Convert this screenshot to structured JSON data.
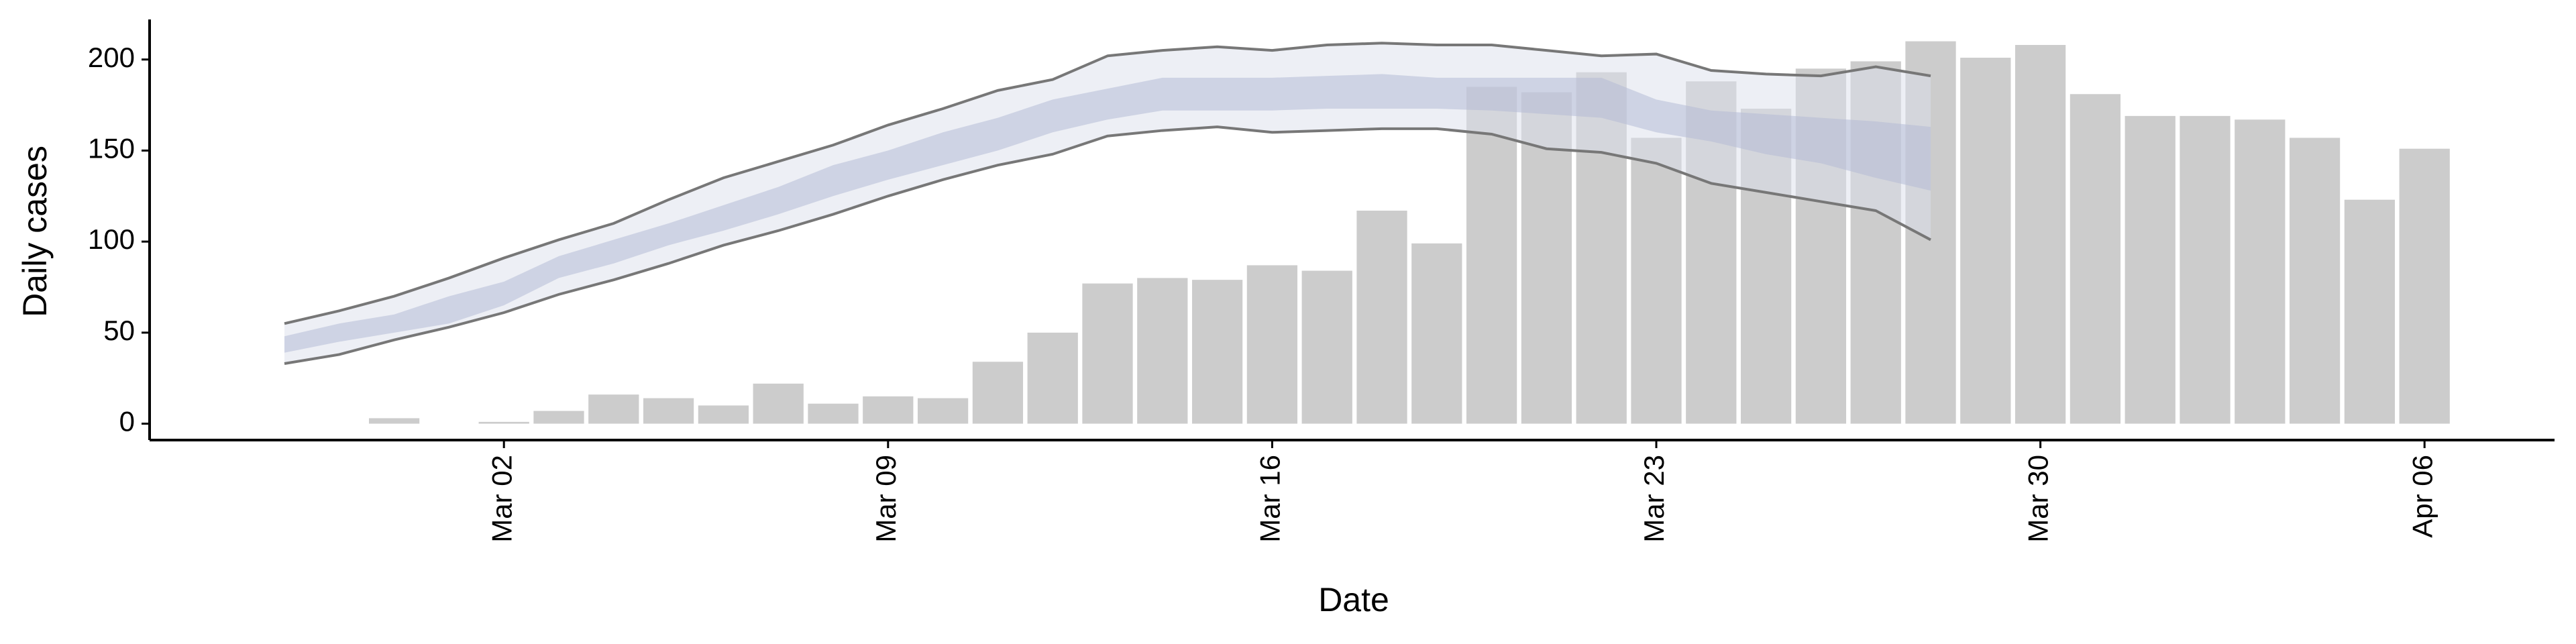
{
  "chart_data": {
    "type": "bar",
    "x_label": "Date",
    "y_label": "Daily cases",
    "categories": [
      null,
      null,
      null,
      null,
      "Mar 02",
      null,
      null,
      null,
      null,
      null,
      null,
      "Mar 09",
      null,
      null,
      null,
      null,
      null,
      null,
      "Mar 16",
      null,
      null,
      null,
      null,
      null,
      null,
      "Mar 23",
      null,
      null,
      null,
      null,
      null,
      null,
      "Mar 30",
      null,
      null,
      null,
      null,
      null,
      null,
      "Apr 06"
    ],
    "values": [
      null,
      null,
      3,
      null,
      1,
      7,
      16,
      14,
      10,
      22,
      11,
      15,
      14,
      34,
      50,
      77,
      80,
      79,
      87,
      84,
      117,
      99,
      185,
      182,
      193,
      157,
      188,
      173,
      195,
      199,
      210,
      201,
      208,
      181,
      169,
      169,
      167,
      157,
      123,
      151
    ],
    "color": "#cccccc",
    "ribbon_outer": {
      "upper": [
        55,
        62,
        70,
        80,
        91,
        101,
        110,
        123,
        135,
        144,
        153,
        164,
        173,
        183,
        189,
        202,
        205,
        207,
        205,
        208,
        209,
        208,
        208,
        205,
        202,
        203,
        194,
        192,
        191,
        196,
        191
      ],
      "lower": [
        33,
        38,
        46,
        53,
        61,
        71,
        79,
        88,
        98,
        106,
        115,
        125,
        134,
        142,
        148,
        158,
        161,
        163,
        160,
        161,
        162,
        162,
        159,
        151,
        149,
        143,
        132,
        127,
        122,
        117,
        101
      ],
      "color": "#dcdfec",
      "line_color": "#777777"
    },
    "ribbon_inner": {
      "upper": [
        48,
        55,
        60,
        70,
        78,
        92,
        101,
        110,
        120,
        130,
        142,
        150,
        160,
        168,
        178,
        184,
        190,
        190,
        190,
        191,
        192,
        190,
        190,
        190,
        190,
        178,
        172,
        170,
        168,
        166,
        163
      ],
      "lower": [
        39,
        45,
        50,
        55,
        65,
        80,
        88,
        98,
        106,
        115,
        125,
        134,
        142,
        150,
        160,
        167,
        172,
        172,
        172,
        173,
        173,
        173,
        172,
        170,
        168,
        160,
        155,
        148,
        143,
        135,
        128
      ],
      "color": "#b4bbd6"
    },
    "ylim": [
      -9,
      222
    ],
    "yticks": [
      0,
      50,
      100,
      150,
      200
    ]
  }
}
